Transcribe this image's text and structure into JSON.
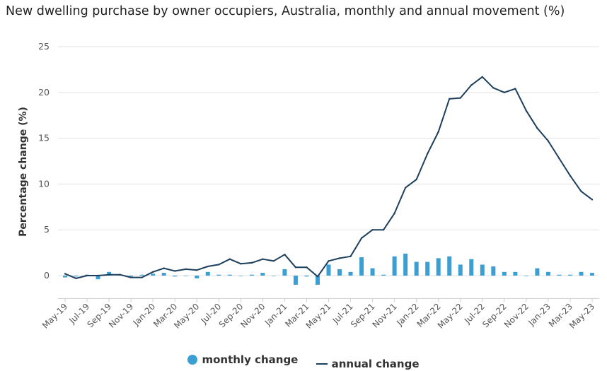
{
  "chart_data": {
    "type": "bar+line",
    "title": "New dwelling purchase by owner occupiers, Australia, monthly and annual movement (%)",
    "ylabel": "Percentage change (%)",
    "xlabel": "",
    "ylim": [
      -2.5,
      25
    ],
    "yticks": [
      0,
      5,
      10,
      15,
      20,
      25
    ],
    "grid": true,
    "legend_position": "bottom",
    "categories": [
      "May-19",
      "Jun-19",
      "Jul-19",
      "Aug-19",
      "Sep-19",
      "Oct-19",
      "Nov-19",
      "Dec-19",
      "Jan-20",
      "Feb-20",
      "Mar-20",
      "Apr-20",
      "May-20",
      "Jun-20",
      "Jul-20",
      "Aug-20",
      "Sep-20",
      "Oct-20",
      "Nov-20",
      "Dec-20",
      "Jan-21",
      "Feb-21",
      "Mar-21",
      "Apr-21",
      "May-21",
      "Jun-21",
      "Jul-21",
      "Aug-21",
      "Sep-21",
      "Oct-21",
      "Nov-21",
      "Dec-21",
      "Jan-22",
      "Feb-22",
      "Mar-22",
      "Apr-22",
      "May-22",
      "Jun-22",
      "Jul-22",
      "Aug-22",
      "Sep-22",
      "Oct-22",
      "Nov-22",
      "Dec-22",
      "Jan-23",
      "Feb-23",
      "Mar-23",
      "Apr-23",
      "May-23"
    ],
    "tick_labels": [
      "May-19",
      "Jul-19",
      "Sep-19",
      "Nov-19",
      "Jan-20",
      "Mar-20",
      "May-20",
      "Jul-20",
      "Sep-20",
      "Nov-20",
      "Jan-21",
      "Mar-21",
      "May-21",
      "Jul-21",
      "Sep-21",
      "Nov-21",
      "Jan-22",
      "Mar-22",
      "May-22",
      "Jul-22",
      "Sep-22",
      "Nov-22",
      "Jan-23",
      "Mar-23",
      "May-23"
    ],
    "series": [
      {
        "name": "monthly change",
        "type": "bar",
        "color": "#3b9fd4",
        "values": [
          -0.2,
          -0.1,
          0.1,
          -0.4,
          0.4,
          0.1,
          -0.1,
          0.1,
          0.2,
          0.3,
          -0.1,
          0.0,
          -0.3,
          0.4,
          0.1,
          0.1,
          0.0,
          0.1,
          0.3,
          0.0,
          0.7,
          -1.0,
          -0.1,
          -1.0,
          1.2,
          0.7,
          0.4,
          2.0,
          0.8,
          0.1,
          2.1,
          2.4,
          1.5,
          1.5,
          1.9,
          2.1,
          1.2,
          1.8,
          1.2,
          1.0,
          0.4,
          0.4,
          0.0,
          0.8,
          0.4,
          0.1,
          0.1,
          0.4,
          0.3
        ]
      },
      {
        "name": "annual change",
        "type": "line",
        "color": "#1d3f5e",
        "values": [
          0.2,
          -0.3,
          0.0,
          0.0,
          0.1,
          0.1,
          -0.2,
          -0.2,
          0.4,
          0.8,
          0.5,
          0.7,
          0.6,
          1.0,
          1.2,
          1.8,
          1.3,
          1.4,
          1.8,
          1.6,
          2.3,
          0.9,
          0.9,
          -0.1,
          1.6,
          1.9,
          2.1,
          4.1,
          5.0,
          5.0,
          6.8,
          9.6,
          10.5,
          13.3,
          15.7,
          19.3,
          19.4,
          20.8,
          21.7,
          20.5,
          20.0,
          20.4,
          18.0,
          16.1,
          14.7,
          12.8,
          10.9,
          9.2,
          8.3
        ]
      }
    ]
  }
}
